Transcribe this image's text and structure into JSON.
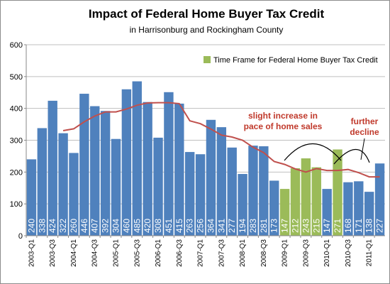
{
  "chart_data": {
    "type": "bar",
    "title": "Impact of Federal Home Buyer Tax Credit",
    "subtitle": "in Harrisonburg  and Rockingham  County",
    "categories": [
      "2003-Q1",
      "2003-Q2",
      "2003-Q3",
      "2003-Q4",
      "2004-Q1",
      "2004-Q2",
      "2004-Q3",
      "2004-Q4",
      "2005-Q1",
      "2005-Q2",
      "2005-Q3",
      "2005-Q4",
      "2006-Q1",
      "2006-Q2",
      "2006-Q3",
      "2006-Q4",
      "2007-Q1",
      "2007-Q2",
      "2007-Q3",
      "2007-Q4",
      "2008-Q1",
      "2008-Q2",
      "2008-Q3",
      "2008-Q4",
      "2009-Q1",
      "2009-Q2",
      "2009-Q3",
      "2009-Q4",
      "2010-Q1",
      "2010-Q2",
      "2010-Q3",
      "2010-Q4",
      "2011-Q1",
      "2011-Q2"
    ],
    "tick_labels": [
      "2003-Q1",
      "",
      "2003-Q3",
      "",
      "2004-Q1",
      "",
      "2004-Q3",
      "",
      "2005-Q1",
      "",
      "2005-Q3",
      "",
      "2006-Q1",
      "",
      "2006-Q3",
      "",
      "2007-Q1",
      "",
      "2007-Q3",
      "",
      "2008-Q1",
      "",
      "2008-Q3",
      "",
      "2009-Q1",
      "",
      "2009-Q3",
      "",
      "2010-Q1",
      "",
      "2010-Q3",
      "",
      "2011-Q1",
      ""
    ],
    "values": [
      240,
      338,
      424,
      322,
      260,
      446,
      407,
      392,
      304,
      460,
      485,
      420,
      308,
      451,
      415,
      263,
      256,
      364,
      341,
      277,
      194,
      283,
      281,
      173,
      147,
      212,
      243,
      215,
      147,
      271,
      168,
      171,
      138,
      227
    ],
    "value_labels": [
      "240",
      "338",
      "424",
      "322",
      "260",
      "446",
      "407",
      "392",
      "304",
      "460",
      "485",
      "420",
      "308",
      "451",
      "415",
      "263",
      "256",
      "364",
      "341",
      "277",
      "194",
      "283",
      "281",
      "173",
      "147",
      "212",
      "243",
      "215",
      "147",
      "271",
      "168",
      "171",
      "138",
      "227"
    ],
    "tax_credit_flags": [
      false,
      false,
      false,
      false,
      false,
      false,
      false,
      false,
      false,
      false,
      false,
      false,
      false,
      false,
      false,
      false,
      false,
      false,
      false,
      false,
      false,
      false,
      false,
      false,
      true,
      true,
      true,
      true,
      false,
      true,
      false,
      false,
      false,
      false
    ],
    "trend": {
      "type": "line",
      "values": [
        null,
        null,
        null,
        330,
        336,
        358,
        376,
        389,
        389,
        398,
        410,
        417,
        418,
        418,
        415,
        361,
        352,
        335,
        316,
        310,
        300,
        278,
        261,
        233,
        224,
        210,
        200,
        211,
        205,
        205,
        208,
        198,
        185,
        185
      ]
    },
    "ylim": [
      0,
      600
    ],
    "yticks": [
      0,
      100,
      200,
      300,
      400,
      500,
      600
    ],
    "grid": true,
    "legend": {
      "label": "Time Frame for Federal Home Buyer Tax Credit",
      "position": "top-right"
    },
    "annotations": [
      {
        "lines": [
          "slight increase in",
          "pace of home sales"
        ]
      },
      {
        "lines": [
          "further",
          "decline"
        ]
      }
    ],
    "colors": {
      "bar": "#4f81bd",
      "bar_tax_credit": "#9bbb59",
      "trend_line": "#c0504d",
      "annotation_text": "#c0392b",
      "grid": "#bfbfbf"
    }
  }
}
